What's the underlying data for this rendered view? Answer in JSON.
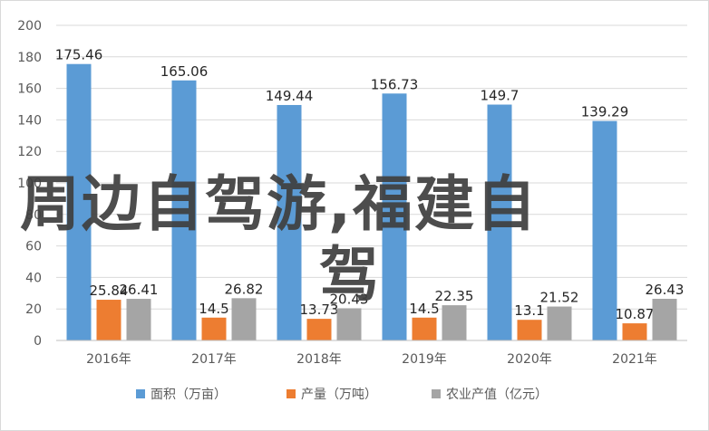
{
  "chart_data": {
    "type": "bar",
    "categories": [
      "2016年",
      "2017年",
      "2018年",
      "2019年",
      "2020年",
      "2021年"
    ],
    "series": [
      {
        "name": "面积（万亩）",
        "values": [
          175.46,
          165.06,
          149.44,
          156.73,
          149.7,
          139.29
        ],
        "labels": [
          "175.46",
          "165.06",
          "149.44",
          "156.73",
          "149.7",
          "139.29"
        ],
        "color": "#5b9bd5"
      },
      {
        "name": "产量（万吨）",
        "values": [
          25.84,
          14.5,
          13.73,
          14.5,
          13.1,
          10.87
        ],
        "labels": [
          "25.84",
          "14.5",
          "13.73",
          "14.5",
          "13.1",
          "10.87"
        ],
        "color": "#ed7d31"
      },
      {
        "name": "农业产值（亿元）",
        "values": [
          26.41,
          26.82,
          20.43,
          22.35,
          21.52,
          26.43
        ],
        "labels": [
          "26.41",
          "26.82",
          "20.43",
          "22.35",
          "21.52",
          "26.43"
        ],
        "color": "#a5a5a5"
      }
    ],
    "yticks": [
      "0",
      "20",
      "40",
      "60",
      "80",
      "100",
      "120",
      "140",
      "160",
      "180",
      "200"
    ],
    "ylim": [
      0,
      200
    ],
    "grid": true,
    "legend": "bottom"
  },
  "overlay": {
    "line1": "周边自驾游,福建自",
    "line2": "驾"
  }
}
